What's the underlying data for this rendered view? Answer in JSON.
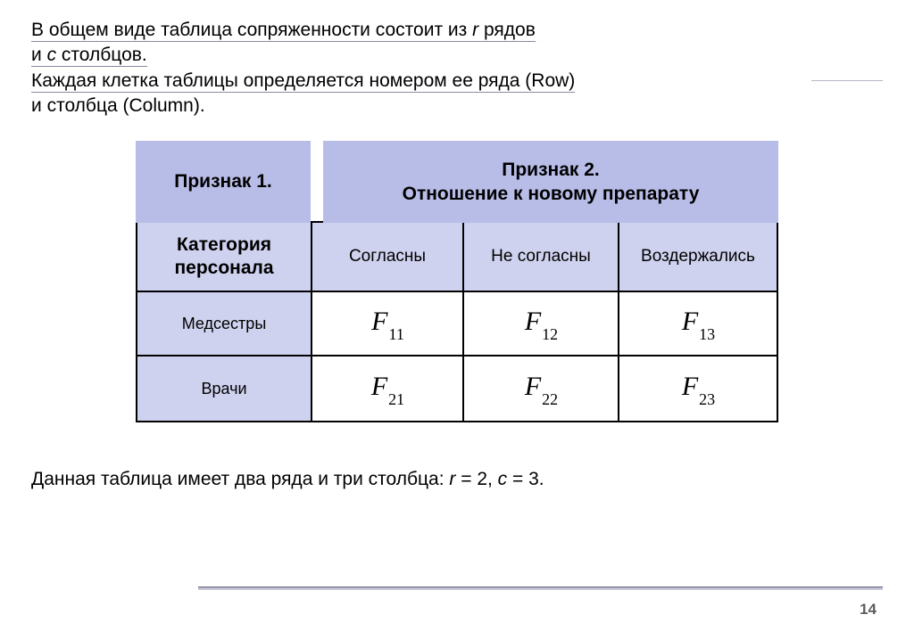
{
  "intro": {
    "l1a": "В общем виде таблица сопряженности состоит из ",
    "l1b": "r",
    "l1c": " рядов",
    "l2a": "и ",
    "l2b": "с",
    "l2c": " столбцов.",
    "l3": "Каждая клетка таблицы определяется номером ее ряда (Row)",
    "l4": " и столбца (Column)."
  },
  "table": {
    "header_left": "Признак 1.",
    "header_right_l1": "Признак 2.",
    "header_right_l2": "Отношение к новому препарату",
    "subhead_col0_l1": "Категория",
    "subhead_col0_l2": "персонала",
    "subhead_col1": "Согласны",
    "subhead_col2": "Не согласны",
    "subhead_col3": "Воздержались",
    "row1_label": "Медсестры",
    "row2_label": "Врачи",
    "cells": {
      "r1c1_sym": "F",
      "r1c1_sub": "11",
      "r1c2_sym": "F",
      "r1c2_sub": "12",
      "r1c3_sym": "F",
      "r1c3_sub": "13",
      "r2c1_sym": "F",
      "r2c1_sub": "21",
      "r2c2_sym": "F",
      "r2c2_sub": "22",
      "r2c3_sym": "F",
      "r2c3_sub": "23"
    },
    "colors": {
      "banner_bg": "#b8bde8",
      "subhead_bg": "#cfd2ef",
      "border": "#000000"
    }
  },
  "caption": {
    "pre": "Данная таблица имеет два ряда и три столбца: ",
    "r_sym": "r",
    "mid": " = 2, ",
    "c_sym": "с",
    "post": " = 3."
  },
  "page_number": "14"
}
